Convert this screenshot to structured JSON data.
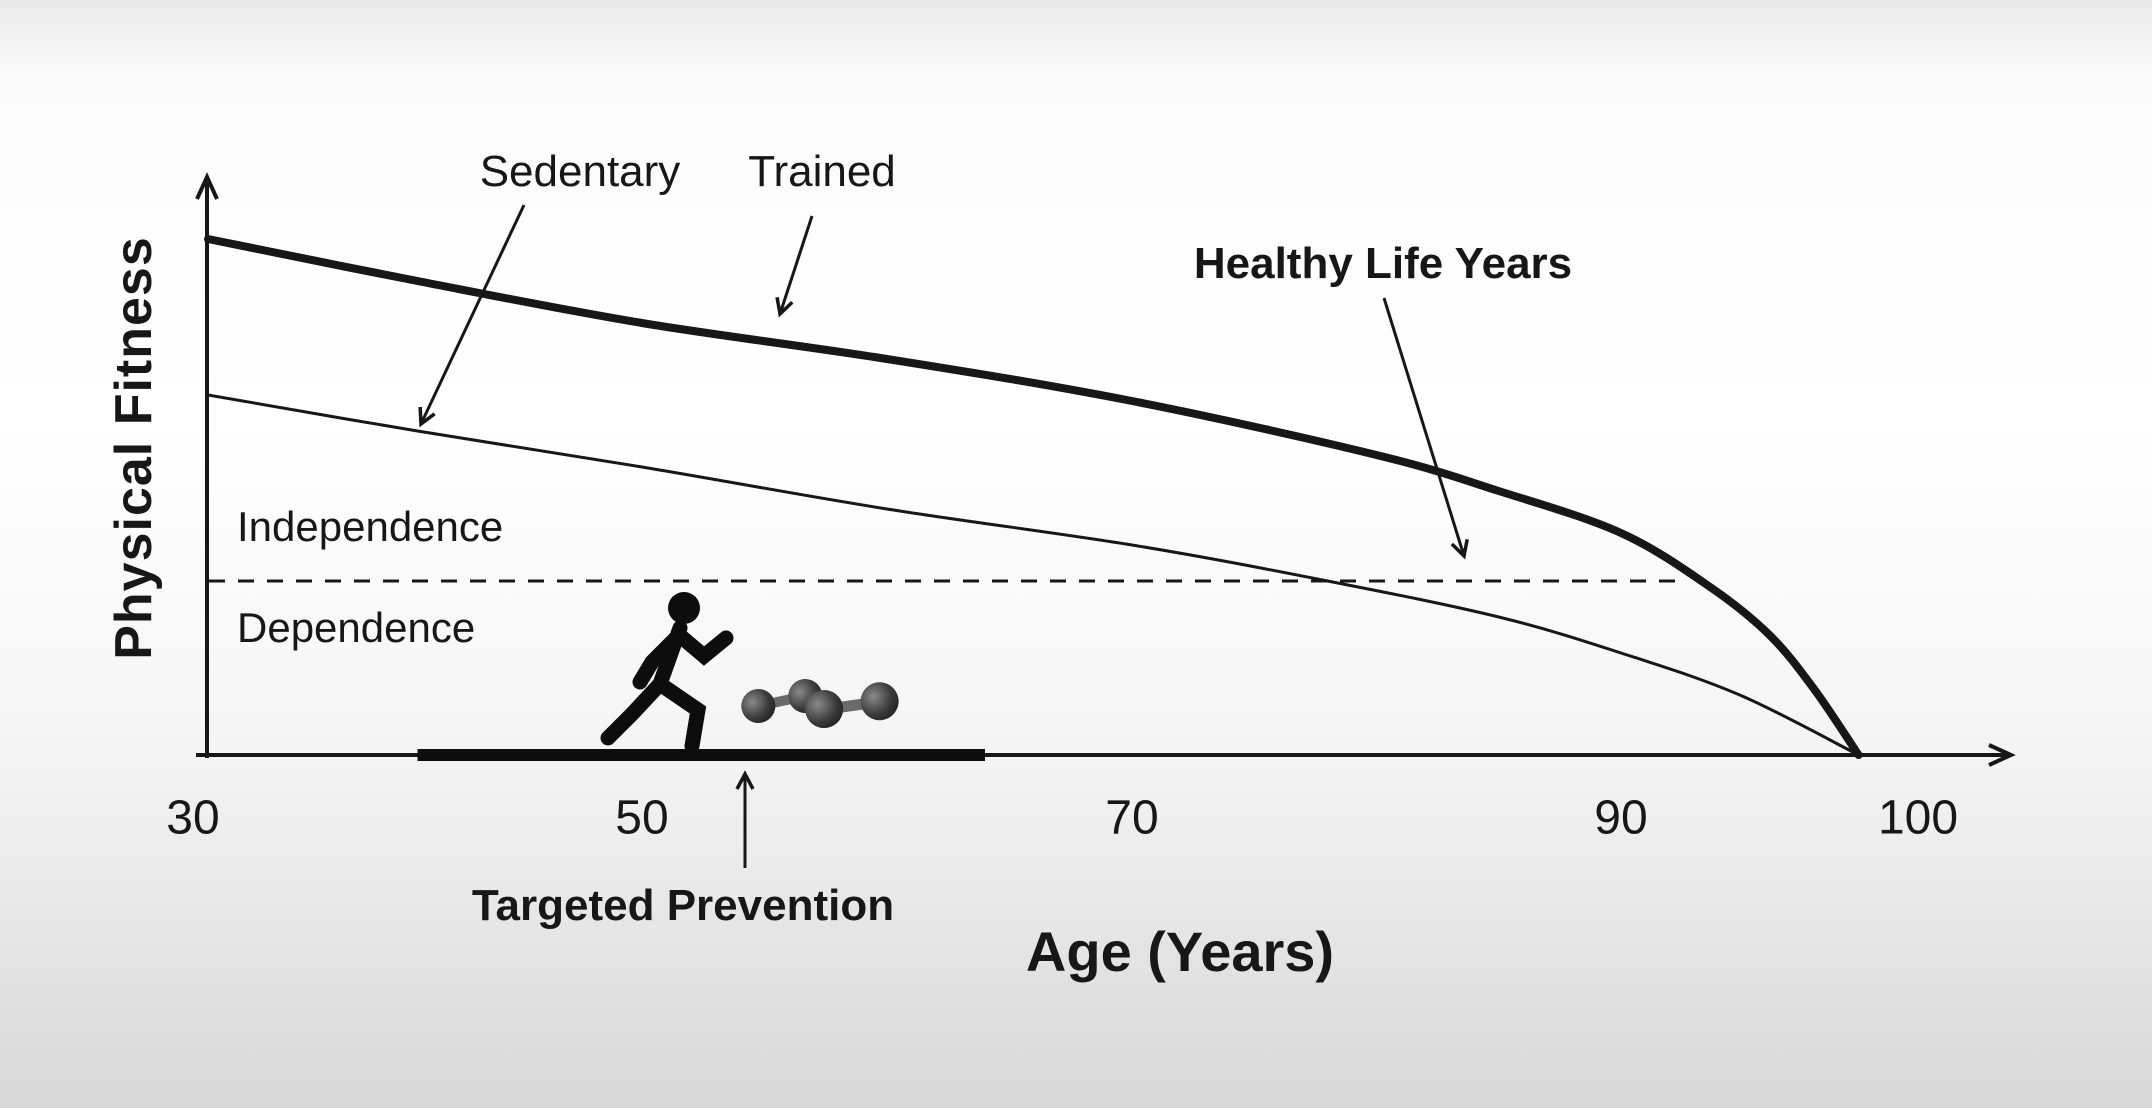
{
  "chart_data": {
    "type": "line",
    "title": "",
    "xlabel": "Age (Years)",
    "ylabel": "Physical Fitness",
    "x_ticks": [
      "30",
      "50",
      "70",
      "90",
      "100"
    ],
    "xlim": [
      30,
      108
    ],
    "ylim": [
      0,
      100
    ],
    "grid": false,
    "legend_position": "none",
    "line_color": "#171717",
    "series": [
      {
        "name": "Trained",
        "line_style": "thick solid",
        "color": "#171717",
        "x": [
          30,
          40,
          50,
          60,
          70,
          80,
          85,
          90,
          93,
          95,
          96.5,
          98
        ],
        "y": [
          86,
          79,
          72,
          66,
          59,
          50,
          44,
          37,
          28,
          20,
          11,
          0
        ]
      },
      {
        "name": "Sedentary",
        "line_style": "thin solid",
        "color": "#171717",
        "x": [
          30,
          40,
          50,
          60,
          70,
          78,
          85,
          90,
          94,
          98
        ],
        "y": [
          60,
          54,
          48,
          41,
          35,
          29,
          23,
          17,
          10,
          0
        ]
      }
    ],
    "threshold_line": {
      "style": "dashed",
      "value": 29,
      "x_start": 30.5,
      "x_end": 92,
      "label_above": "Independence",
      "label_below": "Dependence"
    },
    "annotations": [
      {
        "text": "Sedentary",
        "bold": false,
        "points_to": "sedentary-curve"
      },
      {
        "text": "Trained",
        "bold": false,
        "points_to": "trained-curve"
      },
      {
        "text": "Healthy Life Years",
        "bold": true,
        "points_to": "threshold-dashed-line"
      },
      {
        "text": "Targeted Prevention",
        "bold": true,
        "points_to": "prevention-bar"
      }
    ],
    "prevention_bar": {
      "x_start": 40,
      "x_end": 64,
      "y": 0
    },
    "icons": [
      {
        "name": "runner-icon"
      },
      {
        "name": "dumbbell-icon"
      }
    ]
  }
}
